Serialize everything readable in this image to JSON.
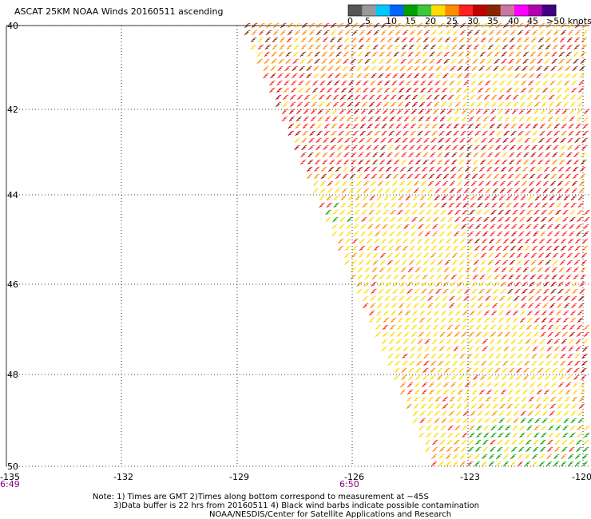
{
  "title": "ASCAT 25KM NOAA Winds 20160511 ascending",
  "legend": {
    "ticks": [
      "0",
      "5",
      "10",
      "15",
      "20",
      "25",
      "30",
      "35",
      "40",
      "45",
      ">50 knots"
    ],
    "colors": [
      "#555555",
      "#999999",
      "#00c8ff",
      "#0064ff",
      "#00a000",
      "#3cc83c",
      "#ffdc00",
      "#ff8c00",
      "#ff2020",
      "#c00000",
      "#8b2500",
      "#c878a0",
      "#ff00ff",
      "#b000b0",
      "#400080"
    ]
  },
  "axes": {
    "lat_labels": [
      "40",
      "42",
      "44",
      "46",
      "48",
      "50"
    ],
    "lon_labels": [
      "-135",
      "-132",
      "-129",
      "-126",
      "-123",
      "-120"
    ],
    "time_labels": [
      "6:49",
      "6:50"
    ]
  },
  "notes": [
    "Note: 1) Times are GMT 2)Times along bottom correspond to measurement at ~45S",
    "3)Data buffer is 22 hrs from 20160511 4) Black wind barbs indicate possible contamination",
    "NOAA/NESDIS/Center for Satellite Applications and Research"
  ],
  "wind_colors": {
    "calm": "#00a000",
    "light": "#ffdc00",
    "moderate": "#ff8c00",
    "strong": "#ff2020",
    "gale": "#c00000",
    "storm": "#8b2500"
  }
}
